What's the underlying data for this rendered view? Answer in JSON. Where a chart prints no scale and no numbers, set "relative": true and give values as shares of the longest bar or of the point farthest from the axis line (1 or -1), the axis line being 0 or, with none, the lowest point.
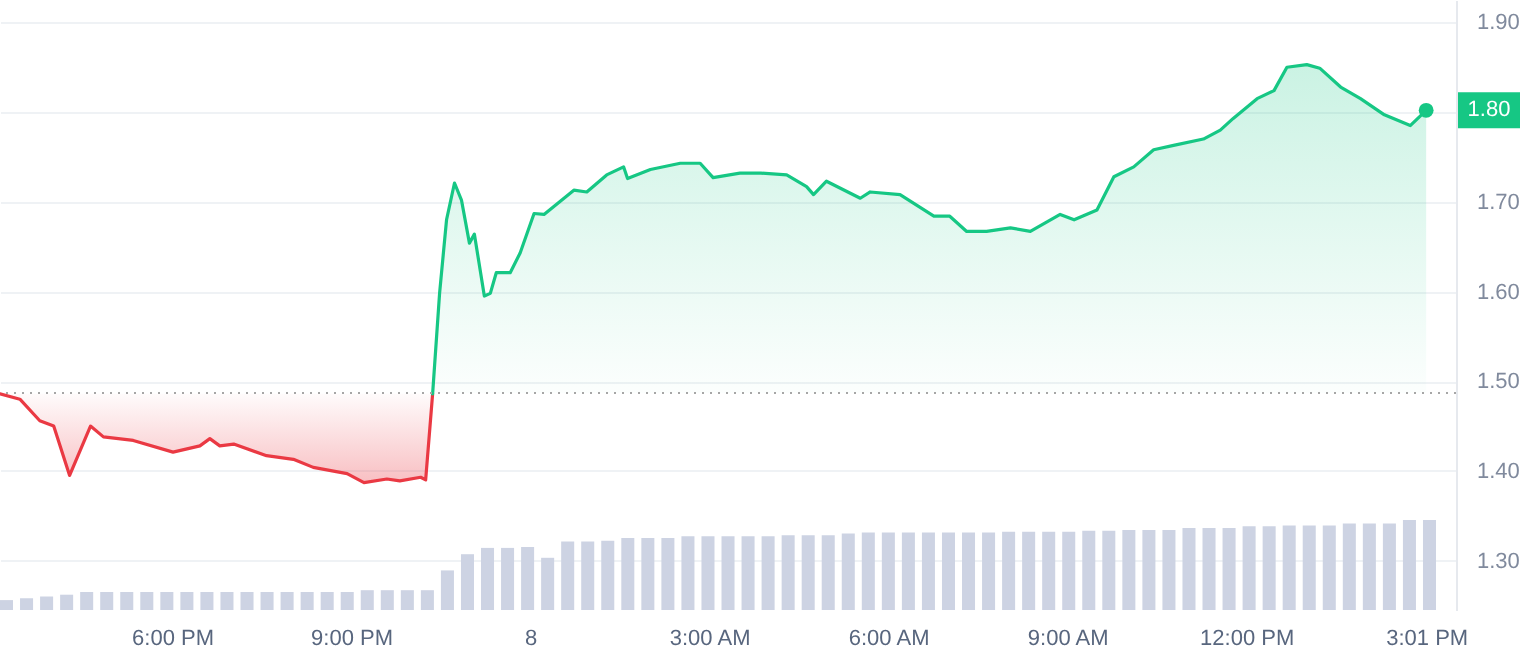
{
  "chart_data": [
    {
      "type": "area",
      "xlim": [
        "--01-07T15:07",
        "--01-08T15:31"
      ],
      "ylim": [
        1.245,
        1.925
      ],
      "xticks": [
        {
          "value": "--01-07T18:00",
          "label": "6:00 PM"
        },
        {
          "value": "--01-07T21:00",
          "label": "9:00 PM"
        },
        {
          "value": "--01-08T00:00",
          "label": "8"
        },
        {
          "value": "--01-08T03:00",
          "label": "3:00 AM"
        },
        {
          "value": "--01-08T06:00",
          "label": "6:00 AM"
        },
        {
          "value": "--01-08T09:00",
          "label": "9:00 AM"
        },
        {
          "value": "--01-08T12:00",
          "label": "12:00 PM"
        },
        {
          "value": "--01-08T15:01",
          "label": "3:01 PM"
        }
      ],
      "yticks": [
        {
          "value": 1.3,
          "label": "1.30"
        },
        {
          "value": 1.4,
          "label": "1.40"
        },
        {
          "value": 1.5,
          "label": "1.50"
        },
        {
          "value": 1.6,
          "label": "1.60"
        },
        {
          "value": 1.7,
          "label": "1.70"
        },
        {
          "value": 1.8,
          "label": null
        },
        {
          "value": 1.9,
          "label": "1.90"
        }
      ],
      "grid": "y",
      "series": [
        {
          "color": "#ea3943",
          "x": [
            "--01-07T15:07",
            "--01-07T15:27",
            "--01-07T15:47",
            "--01-07T16:01",
            "--01-07T16:17",
            "--01-07T16:38",
            "--01-07T16:51",
            "--01-07T17:21",
            "--01-07T18:01",
            "--01-07T18:28",
            "--01-07T18:38",
            "--01-07T18:48",
            "--01-07T19:02",
            "--01-07T19:35",
            "--01-07T20:02",
            "--01-07T20:22",
            "--01-07T20:56",
            "--01-07T21:13",
            "--01-07T21:36",
            "--01-07T21:49",
            "--01-07T22:10",
            "--01-07T22:15",
            "--01-07T22:22"
          ],
          "values": [
            1.486,
            1.48,
            1.456,
            1.45,
            1.395,
            1.45,
            1.438,
            1.434,
            1.421,
            1.428,
            1.436,
            1.428,
            1.43,
            1.417,
            1.413,
            1.404,
            1.397,
            1.387,
            1.391,
            1.389,
            1.393,
            1.39,
            1.486
          ]
        },
        {
          "color": "#16c784",
          "x": [
            "--01-07T22:22",
            "--01-07T22:29",
            "--01-07T22:36",
            "--01-07T22:44",
            "--01-07T22:51",
            "--01-07T22:59",
            "--01-07T23:04",
            "--01-07T23:14",
            "--01-07T23:20",
            "--01-07T23:26",
            "--01-07T23:40",
            "--01-07T23:50",
            "--01-08T00:04",
            "--01-08T00:14",
            "--01-08T00:44",
            "--01-08T00:57",
            "--01-08T01:17",
            "--01-08T01:34",
            "--01-08T01:38",
            "--01-08T02:01",
            "--01-08T02:31",
            "--01-08T02:51",
            "--01-08T03:04",
            "--01-08T03:31",
            "--01-08T03:52",
            "--01-08T04:18",
            "--01-08T04:38",
            "--01-08T04:45",
            "--01-08T04:58",
            "--01-08T05:32",
            "--01-08T05:42",
            "--01-08T06:12",
            "--01-08T06:46",
            "--01-08T07:02",
            "--01-08T07:19",
            "--01-08T07:39",
            "--01-08T08:03",
            "--01-08T08:23",
            "--01-08T08:53",
            "--01-08T09:07",
            "--01-08T09:30",
            "--01-08T09:47",
            "--01-08T10:07",
            "--01-08T10:27",
            "--01-08T10:47",
            "--01-08T11:17",
            "--01-08T11:34",
            "--01-08T11:47",
            "--01-08T12:11",
            "--01-08T12:28",
            "--01-08T12:41",
            "--01-08T13:01",
            "--01-08T13:14",
            "--01-08T13:35",
            "--01-08T13:55",
            "--01-08T14:19",
            "--01-08T14:45",
            "--01-08T15:01"
          ],
          "values": [
            1.486,
            1.598,
            1.68,
            1.721,
            1.702,
            1.654,
            1.664,
            1.595,
            1.598,
            1.621,
            1.621,
            1.643,
            1.687,
            1.686,
            1.713,
            1.711,
            1.73,
            1.739,
            1.726,
            1.736,
            1.743,
            1.743,
            1.727,
            1.732,
            1.732,
            1.73,
            1.717,
            1.708,
            1.723,
            1.704,
            1.711,
            1.708,
            1.684,
            1.684,
            1.667,
            1.667,
            1.671,
            1.667,
            1.686,
            1.68,
            1.691,
            1.728,
            1.739,
            1.758,
            1.763,
            1.77,
            1.78,
            1.793,
            1.815,
            1.824,
            1.85,
            1.853,
            1.849,
            1.828,
            1.815,
            1.797,
            1.785,
            1.802
          ]
        }
      ],
      "ref_lines": [
        {
          "axis": "y",
          "value": 1.487,
          "color": "#a6a6a6",
          "line_style": "dotted"
        }
      ],
      "annotations": [
        {
          "text": "1.80",
          "x": "--01-08T15:01",
          "y": 1.802
        }
      ]
    },
    {
      "type": "bar",
      "relative": true,
      "color": "#cdd3e3",
      "categories": [
        null,
        null,
        null,
        null,
        null,
        null,
        null,
        null,
        null,
        null,
        null,
        null,
        null,
        null,
        null,
        null,
        null,
        null,
        null,
        null,
        null,
        null,
        null,
        null,
        null,
        null,
        null,
        null,
        null,
        null,
        null,
        null,
        null,
        null,
        null,
        null,
        null,
        null,
        null,
        null,
        null,
        null,
        null,
        null,
        null,
        null,
        null,
        null,
        null,
        null,
        null,
        null,
        null,
        null,
        null,
        null,
        null,
        null,
        null,
        null,
        null,
        null,
        null,
        null,
        null,
        null,
        null,
        null,
        null,
        null,
        null,
        null
      ],
      "values": [
        0.11,
        0.13,
        0.15,
        0.17,
        0.2,
        0.2,
        0.2,
        0.2,
        0.2,
        0.2,
        0.2,
        0.2,
        0.2,
        0.2,
        0.2,
        0.2,
        0.2,
        0.2,
        0.22,
        0.22,
        0.22,
        0.22,
        0.44,
        0.62,
        0.69,
        0.69,
        0.7,
        0.58,
        0.76,
        0.76,
        0.77,
        0.8,
        0.8,
        0.8,
        0.82,
        0.82,
        0.82,
        0.82,
        0.82,
        0.83,
        0.83,
        0.83,
        0.85,
        0.86,
        0.86,
        0.86,
        0.86,
        0.86,
        0.86,
        0.86,
        0.87,
        0.87,
        0.87,
        0.87,
        0.88,
        0.88,
        0.89,
        0.89,
        0.89,
        0.91,
        0.91,
        0.91,
        0.93,
        0.93,
        0.94,
        0.94,
        0.94,
        0.96,
        0.96,
        0.96,
        1,
        1
      ]
    }
  ]
}
